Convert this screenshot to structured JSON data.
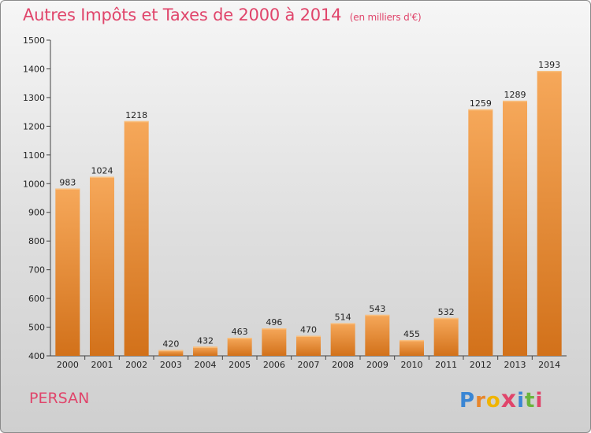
{
  "header": {
    "title": "Autres Impôts et Taxes de 2000 à 2014",
    "subtitle": "(en milliers d'€)"
  },
  "footer": {
    "city": "PERSAN",
    "logo_letters": [
      "P",
      "r",
      "o",
      "x",
      "i",
      "t",
      "i"
    ],
    "logo_colors": [
      "#3a86d4",
      "#e8862a",
      "#f0b400",
      "#e0456b",
      "#3a86d4",
      "#6ab43c",
      "#e0456b"
    ]
  },
  "chart_data": {
    "type": "bar",
    "title": "Autres Impôts et Taxes de 2000 à 2014",
    "subtitle": "(en milliers d'€)",
    "categories": [
      "2000",
      "2001",
      "2002",
      "2003",
      "2004",
      "2005",
      "2006",
      "2007",
      "2008",
      "2009",
      "2010",
      "2011",
      "2012",
      "2013",
      "2014"
    ],
    "values": [
      983,
      1024,
      1218,
      420,
      432,
      463,
      496,
      470,
      514,
      543,
      455,
      532,
      1259,
      1289,
      1393
    ],
    "ylim": [
      400,
      1500
    ],
    "yticks": [
      400,
      500,
      600,
      700,
      800,
      900,
      1000,
      1100,
      1200,
      1300,
      1400,
      1500
    ],
    "xlabel": "",
    "ylabel": "",
    "grid": false,
    "bar_color": "#f0a040",
    "bar_color_dark": "#d9761c"
  }
}
